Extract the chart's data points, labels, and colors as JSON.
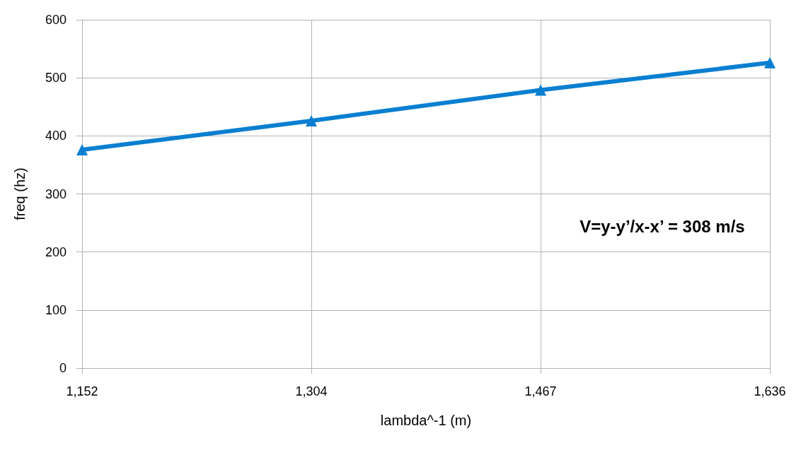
{
  "chart_data": {
    "type": "line",
    "xlabel": "lambda^-1 (m)",
    "ylabel": "freq (hz)",
    "categories": [
      "1,152",
      "1,304",
      "1,467",
      "1,636"
    ],
    "series": [
      {
        "color": "#0a7fd1",
        "values": [
          376,
          426,
          479,
          526
        ]
      }
    ],
    "ylim": [
      0,
      600
    ],
    "yticks": [
      0,
      100,
      200,
      300,
      400,
      500,
      600
    ],
    "grid": true,
    "marker": "triangle",
    "line_style": "solid",
    "annotations": [
      "V=y-y’/x-x’ = 308 m/s"
    ]
  }
}
